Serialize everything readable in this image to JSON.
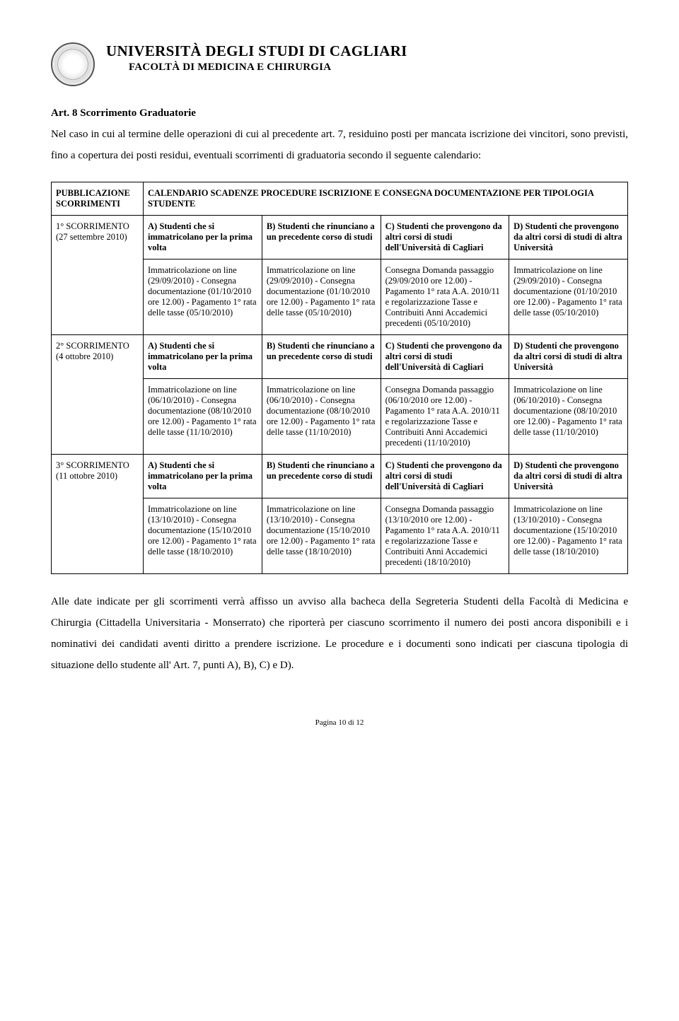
{
  "header": {
    "university": "UNIVERSITÀ DEGLI STUDI DI CAGLIARI",
    "faculty": "FACOLTÀ DI MEDICINA E CHIRURGIA"
  },
  "article": {
    "title": "Art. 8 Scorrimento Graduatorie",
    "intro": "Nel caso in cui al termine delle operazioni di cui al precedente art. 7, residuino posti per mancata iscrizione dei vincitori, sono previsti, fino a copertura dei posti residui, eventuali scorrimenti di graduatoria secondo il seguente calendario:"
  },
  "table": {
    "pub_label": "PUBBLICAZIONE SCORRIMENTI",
    "calendar_label": "CALENDARIO SCADENZE PROCEDURE ISCRIZIONE E CONSEGNA DOCUMENTAZIONE PER TIPOLOGIA STUDENTE",
    "col_A": "A) Studenti che si immatricolano per la prima volta",
    "col_B": "B) Studenti che rinunciano a un precedente corso di studi",
    "col_C": "C) Studenti che provengono da altri corsi di studi dell'Università di Cagliari",
    "col_D": "D) Studenti che provengono da altri corsi di studi di altra Università",
    "rows": [
      {
        "label": "1° SCORRIMENTO (27 settembre 2010)",
        "A": "Immatricolazione on line (29/09/2010) - Consegna documentazione (01/10/2010 ore 12.00) - Pagamento 1° rata delle tasse (05/10/2010)",
        "B": "Immatricolazione on line (29/09/2010) - Consegna documentazione (01/10/2010 ore 12.00) - Pagamento 1° rata delle tasse (05/10/2010)",
        "C": "Consegna Domanda passaggio (29/09/2010 ore 12.00) - Pagamento 1° rata A.A. 2010/11 e regolarizzazione Tasse e Contribuiti Anni Accademici precedenti (05/10/2010)",
        "D": "Immatricolazione on line (29/09/2010) - Consegna documentazione (01/10/2010 ore 12.00) - Pagamento 1° rata delle tasse (05/10/2010)"
      },
      {
        "label": "2° SCORRIMENTO (4 ottobre 2010)",
        "A": "Immatricolazione on line (06/10/2010) - Consegna documentazione (08/10/2010 ore 12.00) - Pagamento 1° rata delle tasse (11/10/2010)",
        "B": "Immatricolazione on line (06/10/2010) - Consegna documentazione (08/10/2010 ore 12.00) - Pagamento 1° rata delle tasse (11/10/2010)",
        "C": "Consegna Domanda passaggio (06/10/2010 ore 12.00) - Pagamento 1° rata A.A. 2010/11 e regolarizzazione Tasse e Contribuiti Anni Accademici precedenti (11/10/2010)",
        "D": "Immatricolazione on line (06/10/2010) - Consegna documentazione (08/10/2010 ore 12.00) - Pagamento 1° rata delle tasse (11/10/2010)"
      },
      {
        "label": "3° SCORRIMENTO (11 ottobre 2010)",
        "A": "Immatricolazione on line (13/10/2010) - Consegna documentazione (15/10/2010 ore 12.00) - Pagamento 1° rata delle tasse (18/10/2010)",
        "B": "Immatricolazione on line (13/10/2010) - Consegna documentazione (15/10/2010 ore 12.00) - Pagamento 1° rata delle tasse (18/10/2010)",
        "C": "Consegna Domanda passaggio (13/10/2010 ore 12.00) - Pagamento 1° rata A.A. 2010/11 e regolarizzazione Tasse e Contribuiti Anni Accademici precedenti (18/10/2010)",
        "D": "Immatricolazione on line (13/10/2010) - Consegna documentazione (15/10/2010 ore 12.00) - Pagamento 1° rata delle tasse (18/10/2010)"
      }
    ]
  },
  "footer_para": "Alle date indicate per gli scorrimenti verrà affisso un avviso alla bacheca della Segreteria Studenti della Facoltà di Medicina e Chirurgia (Cittadella Universitaria - Monserrato) che riporterà per ciascuno scorrimento il numero dei posti ancora disponibili e i nominativi dei candidati aventi diritto a prendere iscrizione. Le procedure e i documenti sono indicati per ciascuna tipologia di situazione dello studente all' Art. 7, punti A), B), C) e D).",
  "page_number": "Pagina 10 di 12"
}
